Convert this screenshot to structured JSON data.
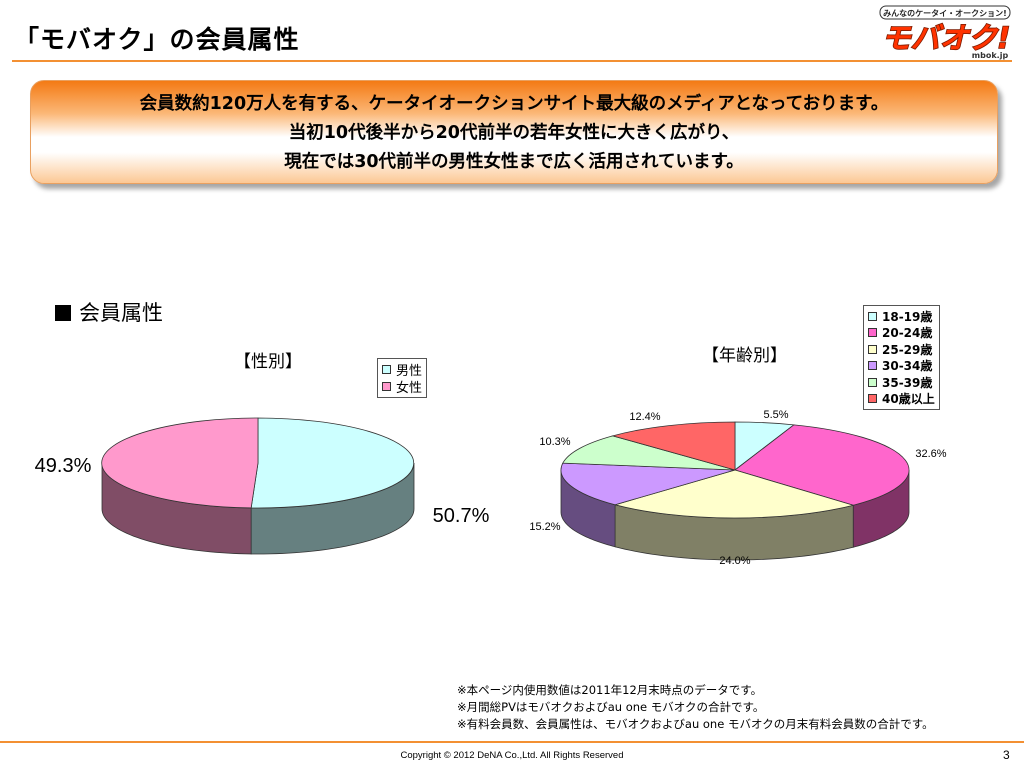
{
  "header": {
    "title": "「モバオク」の会員属性"
  },
  "logo": {
    "tagline": "みんなのケータイ・オークション!",
    "name": "モバオク!",
    "domain": "mbok.jp"
  },
  "banner": {
    "lines": [
      "会員数約120万人を有する、ケータイオークションサイト最大級のメディアとなっております。",
      "当初10代後半から20代前半の若年女性に大きく広がり、",
      "現在では30代前半の男性女性まで広く活用されています。"
    ]
  },
  "section": {
    "label": "会員属性"
  },
  "chart_data": [
    {
      "type": "pie",
      "title": "【性別】",
      "categories": [
        "男性",
        "女性"
      ],
      "values": [
        50.7,
        49.3
      ],
      "labels": [
        "50.7%",
        "49.3%"
      ],
      "colors": [
        "#ccffff",
        "#ff99cc"
      ],
      "legend": "top-right"
    },
    {
      "type": "pie",
      "title": "【年齢別】",
      "categories": [
        "18-19歳",
        "20-24歳",
        "25-29歳",
        "30-34歳",
        "35-39歳",
        "40歳以上"
      ],
      "values": [
        5.5,
        32.6,
        24.0,
        15.2,
        10.3,
        12.4
      ],
      "labels": [
        "5.5%",
        "32.6%",
        "24.0%",
        "15.2%",
        "10.3%",
        "12.4%"
      ],
      "colors": [
        "#ccffff",
        "#ff66cc",
        "#ffffcc",
        "#cc99ff",
        "#ccffcc",
        "#ff6666"
      ],
      "legend": "top-right"
    }
  ],
  "notes": [
    "※本ページ内使用数値は2011年12月末時点のデータです。",
    "※月間総PVはモバオクおよびau one モバオクの合計です。",
    "※有料会員数、会員属性は、モバオクおよびau one モバオクの月末有料会員数の合計です。"
  ],
  "footer": {
    "copyright": "Copyright © 2012 DeNA Co.,Ltd. All Rights Reserved",
    "page": "3"
  }
}
